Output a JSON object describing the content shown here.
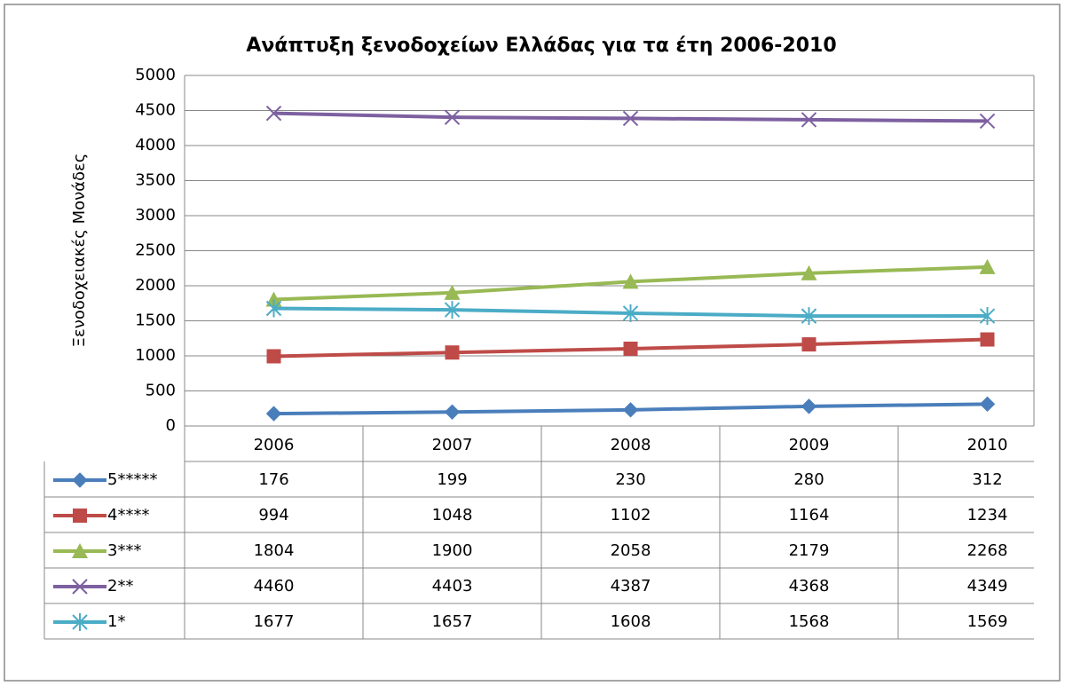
{
  "chart_data": {
    "type": "line",
    "title": "Ανάπτυξη ξενοδοχείων Ελλάδας για τα έτη 2006-2010",
    "y_label": "Ξενοδοχειακές Μονάδες",
    "categories": [
      "2006",
      "2007",
      "2008",
      "2009",
      "2010"
    ],
    "ylim": [
      0,
      5000
    ],
    "yticks": [
      0,
      500,
      1000,
      1500,
      2000,
      2500,
      3000,
      3500,
      4000,
      4500,
      5000
    ],
    "grid": true,
    "data_table": true,
    "series": [
      {
        "name": "5*****",
        "color": "#4a7ebb",
        "marker": "diamond",
        "values": [
          176,
          199,
          230,
          280,
          312
        ]
      },
      {
        "name": "4****",
        "color": "#be4b48",
        "marker": "square",
        "values": [
          994,
          1048,
          1102,
          1164,
          1234
        ]
      },
      {
        "name": "3***",
        "color": "#98b954",
        "marker": "triangle",
        "values": [
          1804,
          1900,
          2058,
          2179,
          2268
        ]
      },
      {
        "name": "2**",
        "color": "#7d60a0",
        "marker": "x",
        "values": [
          4460,
          4403,
          4387,
          4368,
          4349
        ]
      },
      {
        "name": "1*",
        "color": "#4bacc6",
        "marker": "star",
        "values": [
          1677,
          1657,
          1608,
          1568,
          1569
        ]
      }
    ]
  }
}
